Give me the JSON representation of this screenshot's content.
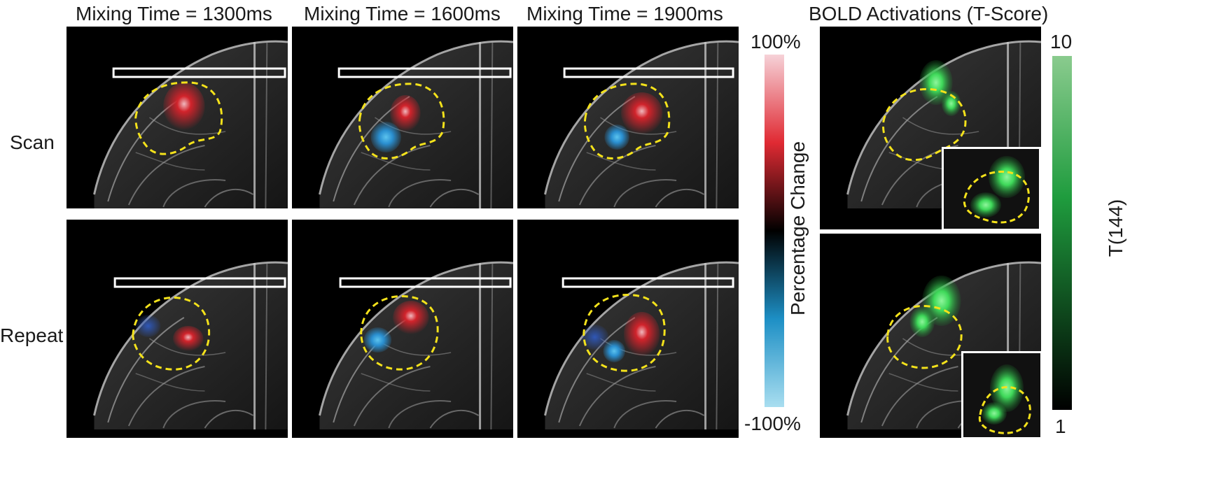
{
  "columns": {
    "c1": "Mixing Time = 1300ms",
    "c2": "Mixing Time = 1600ms",
    "c3": "Mixing Time = 1900ms",
    "bold": "BOLD Activations (T-Score)"
  },
  "rows": {
    "scan": "Scan",
    "repeat": "Repeat"
  },
  "percent_bar": {
    "label": "Percentage Change",
    "max": "100%",
    "min": "-100%",
    "colors": [
      "#f6d2d8",
      "#e02a33",
      "#000000",
      "#1d8fc5",
      "#a9def0"
    ]
  },
  "tscore_bar": {
    "label": "T(144)",
    "max": "10",
    "min": "1",
    "colors": [
      "#8acb8e",
      "#1f9c3e",
      "#000000"
    ]
  },
  "overlay_colors": {
    "roi": "#f4e21b",
    "positive": "#d1232b",
    "negative": "#2a8fd0",
    "bold": "#3fd95a"
  }
}
